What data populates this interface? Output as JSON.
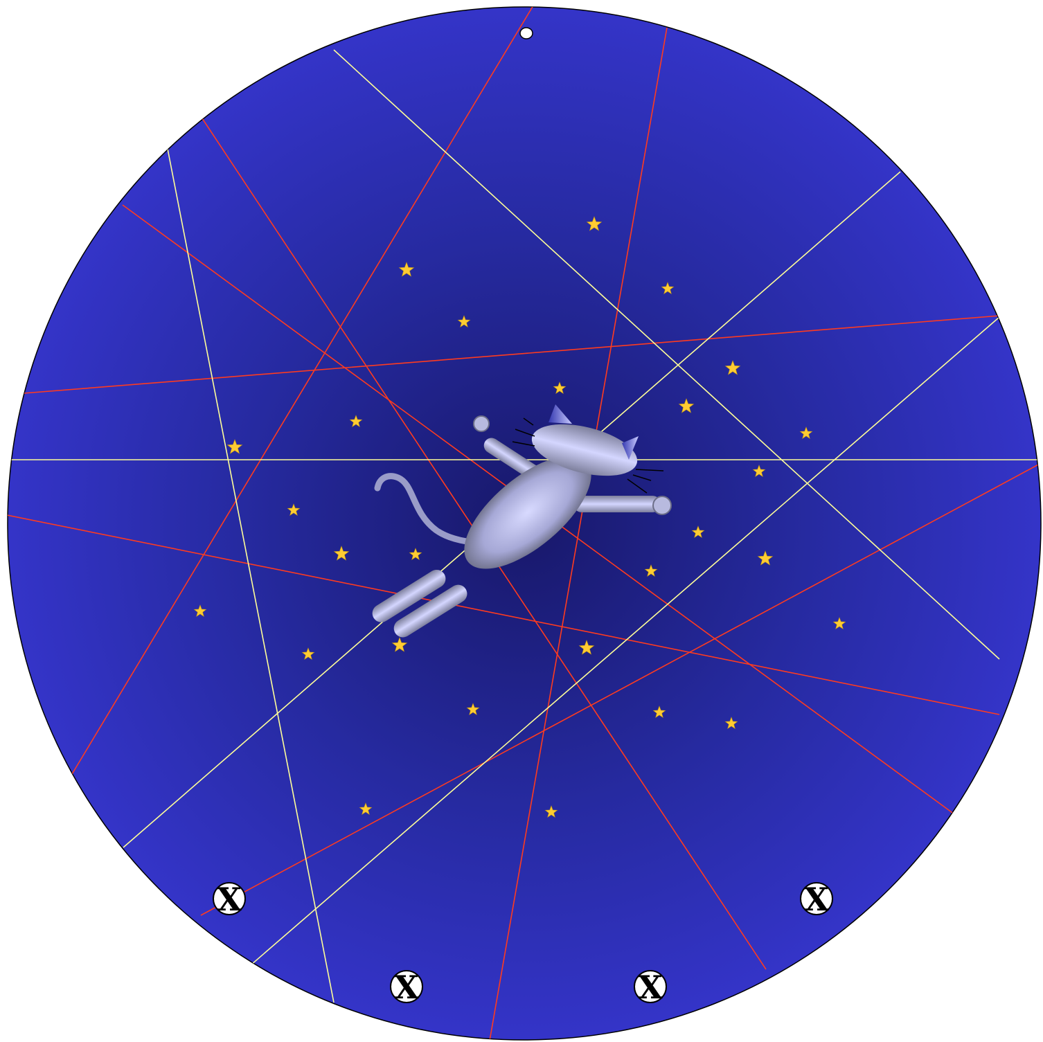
{
  "colors": {
    "board_outer": "#3434c8",
    "board_center": "#18186a",
    "board_edge": "#000000",
    "red_line": "#ff3b1f",
    "yellow_line": "#ffff99",
    "star": "#ffcc33",
    "cat_body": "#c9cbff",
    "cat_shade": "#7a7c9a"
  },
  "markers": [
    {
      "label": "X"
    },
    {
      "label": "X"
    },
    {
      "label": "X"
    },
    {
      "label": "X"
    }
  ],
  "icons": {
    "cat": "flying-cat-icon",
    "star": "star-icon",
    "marker": "x-marker-icon",
    "indicator": "white-dot-icon"
  }
}
